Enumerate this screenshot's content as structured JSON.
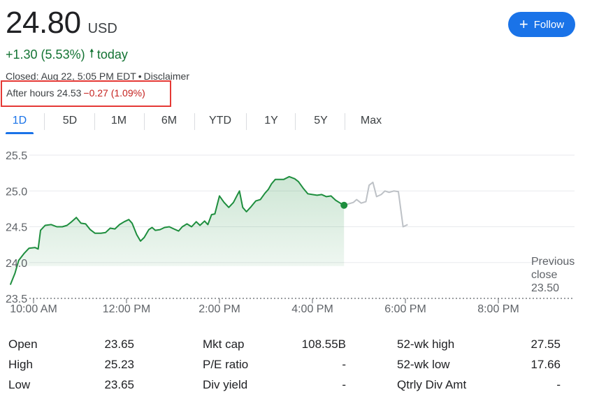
{
  "quote": {
    "price": "24.80",
    "currency": "USD",
    "change": "+1.30 (5.53%)",
    "change_period": "today",
    "closed_text": "Closed: Aug 22, 5:05 PM EDT",
    "disclaimer": "Disclaimer",
    "after_hours_label": "After hours 24.53",
    "after_hours_change": "−0.27 (1.09%)"
  },
  "follow_button": {
    "label": "Follow"
  },
  "tabs": [
    "1D",
    "5D",
    "1M",
    "6M",
    "YTD",
    "1Y",
    "5Y",
    "Max"
  ],
  "active_tab": "1D",
  "colors": {
    "positive": "#137333",
    "negative": "#c5221f",
    "accent": "#1a73e8",
    "line_regular": "#1e8e3e",
    "line_after_hours": "#bdc1c6"
  },
  "chart_data": {
    "type": "area",
    "y_ticks": [
      "25.5",
      "25.0",
      "24.5",
      "24.0",
      "23.5"
    ],
    "ylim": [
      23.5,
      25.5
    ],
    "x_ticks": [
      "10:00 AM",
      "12:00 PM",
      "2:00 PM",
      "4:00 PM",
      "6:00 PM",
      "8:00 PM"
    ],
    "x_tick_hours": [
      10,
      12,
      14,
      16,
      18,
      20
    ],
    "xlim_hours": [
      9.5,
      20.5
    ],
    "previous_close": {
      "label_line1": "Previous",
      "label_line2": "close",
      "value": "23.50"
    },
    "regular_series": [
      [
        9.5,
        23.69
      ],
      [
        9.6,
        23.85
      ],
      [
        9.68,
        24.03
      ],
      [
        9.8,
        24.13
      ],
      [
        9.9,
        24.2
      ],
      [
        10.03,
        24.21
      ],
      [
        10.1,
        24.19
      ],
      [
        10.15,
        24.45
      ],
      [
        10.25,
        24.52
      ],
      [
        10.38,
        24.53
      ],
      [
        10.5,
        24.5
      ],
      [
        10.62,
        24.5
      ],
      [
        10.72,
        24.52
      ],
      [
        10.82,
        24.57
      ],
      [
        10.92,
        24.63
      ],
      [
        11.02,
        24.55
      ],
      [
        11.12,
        24.54
      ],
      [
        11.22,
        24.46
      ],
      [
        11.32,
        24.41
      ],
      [
        11.45,
        24.41
      ],
      [
        11.55,
        24.42
      ],
      [
        11.65,
        24.48
      ],
      [
        11.75,
        24.47
      ],
      [
        11.85,
        24.53
      ],
      [
        11.95,
        24.57
      ],
      [
        12.05,
        24.6
      ],
      [
        12.12,
        24.55
      ],
      [
        12.22,
        24.39
      ],
      [
        12.3,
        24.3
      ],
      [
        12.38,
        24.35
      ],
      [
        12.48,
        24.46
      ],
      [
        12.55,
        24.49
      ],
      [
        12.62,
        24.45
      ],
      [
        12.72,
        24.46
      ],
      [
        12.82,
        24.49
      ],
      [
        12.92,
        24.5
      ],
      [
        13.02,
        24.47
      ],
      [
        13.12,
        24.44
      ],
      [
        13.2,
        24.5
      ],
      [
        13.3,
        24.54
      ],
      [
        13.4,
        24.5
      ],
      [
        13.5,
        24.57
      ],
      [
        13.58,
        24.52
      ],
      [
        13.68,
        24.58
      ],
      [
        13.75,
        24.53
      ],
      [
        13.83,
        24.67
      ],
      [
        13.9,
        24.68
      ],
      [
        14.0,
        24.93
      ],
      [
        14.1,
        24.84
      ],
      [
        14.2,
        24.77
      ],
      [
        14.3,
        24.84
      ],
      [
        14.38,
        24.94
      ],
      [
        14.43,
        25.0
      ],
      [
        14.5,
        24.77
      ],
      [
        14.58,
        24.71
      ],
      [
        14.68,
        24.78
      ],
      [
        14.78,
        24.86
      ],
      [
        14.88,
        24.88
      ],
      [
        14.98,
        24.97
      ],
      [
        15.05,
        25.02
      ],
      [
        15.12,
        25.1
      ],
      [
        15.2,
        25.16
      ],
      [
        15.28,
        25.16
      ],
      [
        15.38,
        25.16
      ],
      [
        15.5,
        25.2
      ],
      [
        15.62,
        25.17
      ],
      [
        15.7,
        25.13
      ],
      [
        15.8,
        25.04
      ],
      [
        15.9,
        24.96
      ],
      [
        16.0,
        24.95
      ],
      [
        16.1,
        24.94
      ],
      [
        16.2,
        24.95
      ],
      [
        16.3,
        24.92
      ],
      [
        16.4,
        24.93
      ],
      [
        16.5,
        24.87
      ],
      [
        16.6,
        24.83
      ],
      [
        16.68,
        24.8
      ]
    ],
    "after_hours_series": [
      [
        16.68,
        24.8
      ],
      [
        16.78,
        24.82
      ],
      [
        16.88,
        24.84
      ],
      [
        16.95,
        24.88
      ],
      [
        17.05,
        24.83
      ],
      [
        17.15,
        24.85
      ],
      [
        17.22,
        25.08
      ],
      [
        17.3,
        25.12
      ],
      [
        17.38,
        24.92
      ],
      [
        17.48,
        24.95
      ],
      [
        17.56,
        25.0
      ],
      [
        17.65,
        24.98
      ],
      [
        17.75,
        25.0
      ],
      [
        17.85,
        24.99
      ],
      [
        17.95,
        24.5
      ],
      [
        18.05,
        24.53
      ]
    ],
    "last_point_hour": 16.68
  },
  "stats": [
    {
      "label": "Open",
      "value": "23.65"
    },
    {
      "label": "High",
      "value": "25.23"
    },
    {
      "label": "Low",
      "value": "23.65"
    },
    {
      "label": "Mkt cap",
      "value": "108.55B"
    },
    {
      "label": "P/E ratio",
      "value": "-"
    },
    {
      "label": "Div yield",
      "value": "-"
    },
    {
      "label": "52-wk high",
      "value": "27.55"
    },
    {
      "label": "52-wk low",
      "value": "17.66"
    },
    {
      "label": "Qtrly Div Amt",
      "value": "-"
    }
  ]
}
